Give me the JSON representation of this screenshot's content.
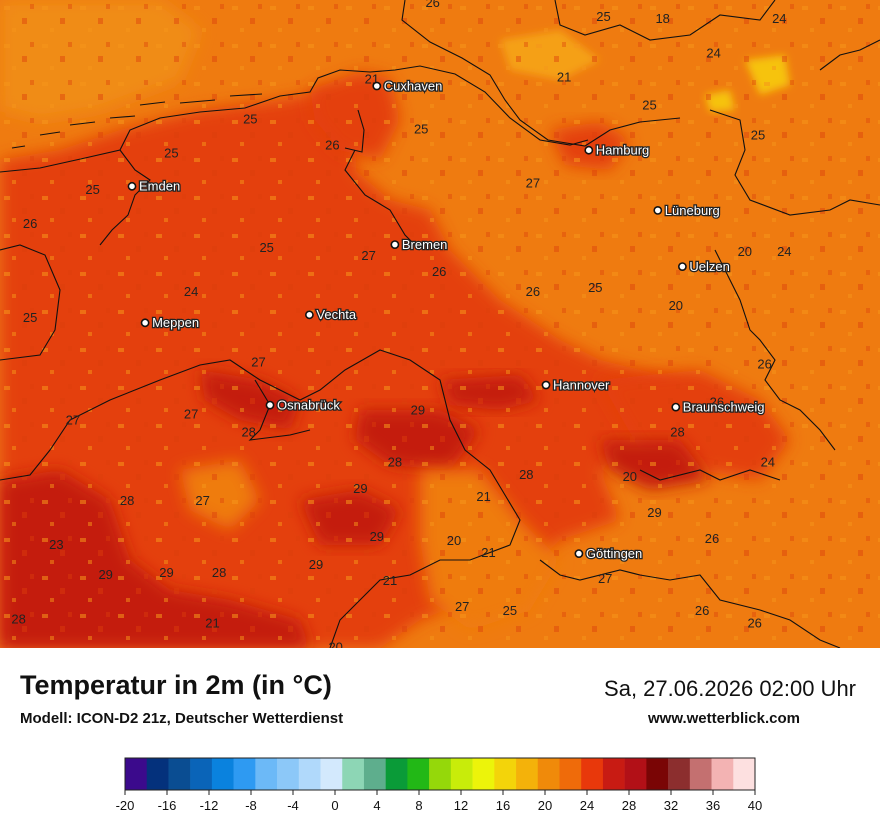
{
  "map": {
    "base_color": "#ef7b10",
    "cities": [
      {
        "name": "Cuxhaven",
        "lon": 8.7,
        "lat": 53.87
      },
      {
        "name": "Hamburg",
        "lon": 9.99,
        "lat": 53.55
      },
      {
        "name": "Emden",
        "lon": 7.21,
        "lat": 53.37
      },
      {
        "name": "Lüneburg",
        "lon": 10.41,
        "lat": 53.25
      },
      {
        "name": "Bremen",
        "lon": 8.81,
        "lat": 53.08
      },
      {
        "name": "Uelzen",
        "lon": 10.56,
        "lat": 52.97
      },
      {
        "name": "Vechta",
        "lon": 8.29,
        "lat": 52.73
      },
      {
        "name": "Meppen",
        "lon": 7.29,
        "lat": 52.69
      },
      {
        "name": "Hannover",
        "lon": 9.73,
        "lat": 52.38
      },
      {
        "name": "Osnabrück",
        "lon": 8.05,
        "lat": 52.28
      },
      {
        "name": "Braunschweig",
        "lon": 10.52,
        "lat": 52.27
      },
      {
        "name": "Göttingen",
        "lon": 9.93,
        "lat": 51.54
      }
    ],
    "temp_labels": [
      {
        "v": "21",
        "lon": 7.37,
        "lat": 54.37
      },
      {
        "v": "24",
        "lon": 8.59,
        "lat": 54.37
      },
      {
        "v": "26",
        "lon": 9.04,
        "lat": 54.28
      },
      {
        "v": "26",
        "lon": 9.79,
        "lat": 54.37
      },
      {
        "v": "25",
        "lon": 10.08,
        "lat": 54.21
      },
      {
        "v": "18",
        "lon": 10.44,
        "lat": 54.2
      },
      {
        "v": "24",
        "lon": 10.75,
        "lat": 54.03
      },
      {
        "v": "24",
        "lon": 11.15,
        "lat": 54.2
      },
      {
        "v": "21",
        "lon": 9.84,
        "lat": 53.91
      },
      {
        "v": "25",
        "lon": 10.36,
        "lat": 53.77
      },
      {
        "v": "25",
        "lon": 11.02,
        "lat": 53.62
      },
      {
        "v": "21",
        "lon": 8.67,
        "lat": 53.9
      },
      {
        "v": "25",
        "lon": 7.93,
        "lat": 53.7
      },
      {
        "v": "25",
        "lon": 8.97,
        "lat": 53.65
      },
      {
        "v": "26",
        "lon": 8.43,
        "lat": 53.57
      },
      {
        "v": "25",
        "lon": 7.45,
        "lat": 53.53
      },
      {
        "v": "27",
        "lon": 9.65,
        "lat": 53.38
      },
      {
        "v": "25",
        "lon": 6.97,
        "lat": 53.35
      },
      {
        "v": "26",
        "lon": 6.59,
        "lat": 53.18
      },
      {
        "v": "25",
        "lon": 8.03,
        "lat": 53.06
      },
      {
        "v": "27",
        "lon": 8.65,
        "lat": 53.02
      },
      {
        "v": "20",
        "lon": 10.94,
        "lat": 53.04
      },
      {
        "v": "24",
        "lon": 11.18,
        "lat": 53.04
      },
      {
        "v": "26",
        "lon": 9.08,
        "lat": 52.94
      },
      {
        "v": "24",
        "lon": 7.57,
        "lat": 52.84
      },
      {
        "v": "26",
        "lon": 9.65,
        "lat": 52.84
      },
      {
        "v": "25",
        "lon": 10.03,
        "lat": 52.86
      },
      {
        "v": "20",
        "lon": 10.52,
        "lat": 52.77
      },
      {
        "v": "25",
        "lon": 6.59,
        "lat": 52.71
      },
      {
        "v": "27",
        "lon": 7.98,
        "lat": 52.49
      },
      {
        "v": "26",
        "lon": 11.06,
        "lat": 52.48
      },
      {
        "v": "26",
        "lon": 10.77,
        "lat": 52.29
      },
      {
        "v": "29",
        "lon": 8.95,
        "lat": 52.25
      },
      {
        "v": "27",
        "lon": 6.85,
        "lat": 52.2
      },
      {
        "v": "27",
        "lon": 7.57,
        "lat": 52.23
      },
      {
        "v": "28",
        "lon": 7.92,
        "lat": 52.14
      },
      {
        "v": "28",
        "lon": 10.53,
        "lat": 52.14
      },
      {
        "v": "28",
        "lon": 8.81,
        "lat": 51.99
      },
      {
        "v": "24",
        "lon": 11.08,
        "lat": 51.99
      },
      {
        "v": "28",
        "lon": 9.61,
        "lat": 51.93
      },
      {
        "v": "20",
        "lon": 10.24,
        "lat": 51.92
      },
      {
        "v": "29",
        "lon": 8.6,
        "lat": 51.86
      },
      {
        "v": "21",
        "lon": 9.35,
        "lat": 51.82
      },
      {
        "v": "28",
        "lon": 7.18,
        "lat": 51.8
      },
      {
        "v": "27",
        "lon": 7.64,
        "lat": 51.8
      },
      {
        "v": "29",
        "lon": 10.39,
        "lat": 51.74
      },
      {
        "v": "29",
        "lon": 8.7,
        "lat": 51.62
      },
      {
        "v": "20",
        "lon": 9.17,
        "lat": 51.6
      },
      {
        "v": "26",
        "lon": 10.74,
        "lat": 51.61
      },
      {
        "v": "23",
        "lon": 6.75,
        "lat": 51.58
      },
      {
        "v": "21",
        "lon": 9.38,
        "lat": 51.54
      },
      {
        "v": "29",
        "lon": 8.33,
        "lat": 51.48
      },
      {
        "v": "29",
        "lon": 7.05,
        "lat": 51.43
      },
      {
        "v": "29",
        "lon": 7.42,
        "lat": 51.44
      },
      {
        "v": "28",
        "lon": 7.74,
        "lat": 51.44
      },
      {
        "v": "21",
        "lon": 8.78,
        "lat": 51.4
      },
      {
        "v": "27",
        "lon": 10.09,
        "lat": 51.41
      },
      {
        "v": "27",
        "lon": 9.22,
        "lat": 51.27
      },
      {
        "v": "25",
        "lon": 9.51,
        "lat": 51.25
      },
      {
        "v": "26",
        "lon": 10.68,
        "lat": 51.25
      },
      {
        "v": "28",
        "lon": 6.52,
        "lat": 51.21
      },
      {
        "v": "21",
        "lon": 7.7,
        "lat": 51.19
      },
      {
        "v": "26",
        "lon": 11.0,
        "lat": 51.19
      },
      {
        "v": "20",
        "lon": 8.11,
        "lat": 51.04
      },
      {
        "v": "20",
        "lon": 8.45,
        "lat": 51.07
      },
      {
        "v": "27",
        "lon": 8.79,
        "lat": 51.02
      }
    ]
  },
  "title": "Temperatur in 2m (in °C)",
  "subtitle": "Modell: ICON-D2 21z, Deutscher Wetterdienst",
  "datetime": "Sa, 27.06.2026 02:00 Uhr",
  "website": "www.wetterblick.com",
  "legend": {
    "colors": [
      "#3b0a8c",
      "#04317c",
      "#0a4d92",
      "#0a64b8",
      "#0a82de",
      "#2e9af2",
      "#6cb9f7",
      "#8cc8f8",
      "#b0d9fb",
      "#d3e9fd",
      "#8dd6b5",
      "#5eae8d",
      "#0a9b38",
      "#22b816",
      "#95d80a",
      "#c8ec0a",
      "#ecf40a",
      "#f3d40a",
      "#f4b20a",
      "#f08a0a",
      "#ef6b0a",
      "#e8380b",
      "#c81b13",
      "#b21017",
      "#7a0505",
      "#8c2e2e",
      "#c47070",
      "#f3b3b3",
      "#fde0e0"
    ],
    "ticks": [
      "-20",
      "-16",
      "-12",
      "-8",
      "-4",
      "0",
      "4",
      "8",
      "12",
      "16",
      "20",
      "24",
      "28",
      "32",
      "36",
      "40"
    ]
  }
}
